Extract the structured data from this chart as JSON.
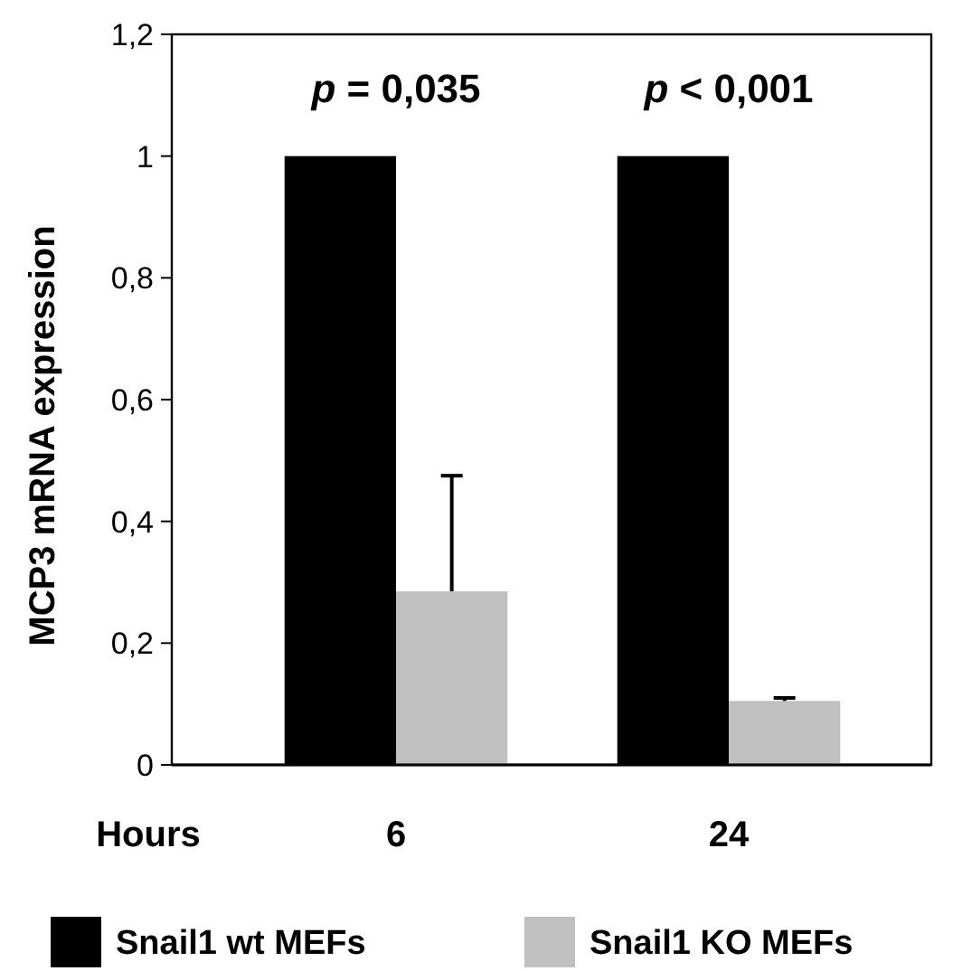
{
  "chart_data": {
    "type": "bar",
    "xlabel": "Hours",
    "ylabel": "MCP3 mRNA expression",
    "categories": [
      "6",
      "24"
    ],
    "series": [
      {
        "name": "Snail1 wt MEFs",
        "color": "#000000",
        "values": [
          1,
          1
        ]
      },
      {
        "name": "Snail1 KO MEFs",
        "color": "#c0c0c0",
        "values": [
          0.285,
          0.105
        ],
        "errors": [
          [
            0.285,
            0.475
          ],
          [
            0.105,
            0.11
          ]
        ]
      }
    ],
    "ylim": [
      0,
      1.2
    ],
    "yticks": [
      0,
      {
        "value": 0.2,
        "label": "0,2"
      },
      {
        "value": 0.4,
        "label": "0,4"
      },
      {
        "value": 0.6,
        "label": "0,6"
      },
      {
        "value": 0.8,
        "label": "0,8"
      },
      1,
      {
        "value": 1.2,
        "label": "1,2"
      }
    ],
    "annotations": [
      "p = 0,035",
      "p < 0,001"
    ],
    "grid": false,
    "legend": "bottom"
  }
}
